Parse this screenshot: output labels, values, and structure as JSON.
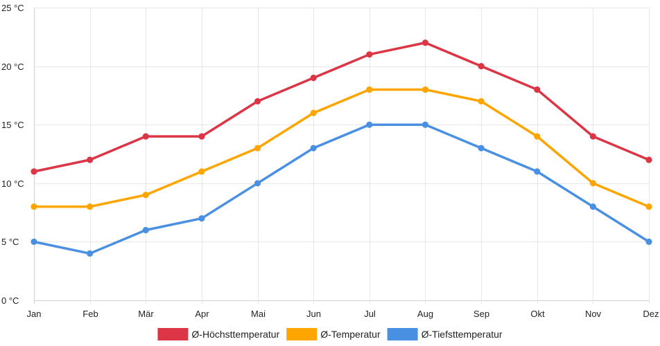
{
  "chart_data": {
    "type": "line",
    "categories": [
      "Jan",
      "Feb",
      "Mär",
      "Apr",
      "Mai",
      "Jun",
      "Jul",
      "Aug",
      "Sep",
      "Okt",
      "Nov",
      "Dez"
    ],
    "y_unit": "°C",
    "ylim": [
      0,
      25
    ],
    "y_ticks": [
      0,
      5,
      10,
      15,
      20,
      25
    ],
    "y_tick_labels": [
      "0 °C",
      "5 °C",
      "10 °C",
      "15 °C",
      "20 °C",
      "25 °C"
    ],
    "grid": true,
    "legend_position": "bottom",
    "series": [
      {
        "name": "Ø-Höchsttemperatur",
        "color": "#dc3545",
        "values": [
          11,
          12,
          14,
          14,
          17,
          19,
          21,
          22,
          20,
          18,
          14,
          12
        ]
      },
      {
        "name": "Ø-Temperatur",
        "color": "#ffa500",
        "values": [
          8,
          8,
          9,
          11,
          13,
          16,
          18,
          18,
          17,
          14,
          10,
          8
        ]
      },
      {
        "name": "Ø-Tiefsttemperatur",
        "color": "#4a90e2",
        "values": [
          5,
          4,
          6,
          7,
          10,
          13,
          15,
          15,
          13,
          11,
          8,
          5
        ]
      }
    ]
  }
}
